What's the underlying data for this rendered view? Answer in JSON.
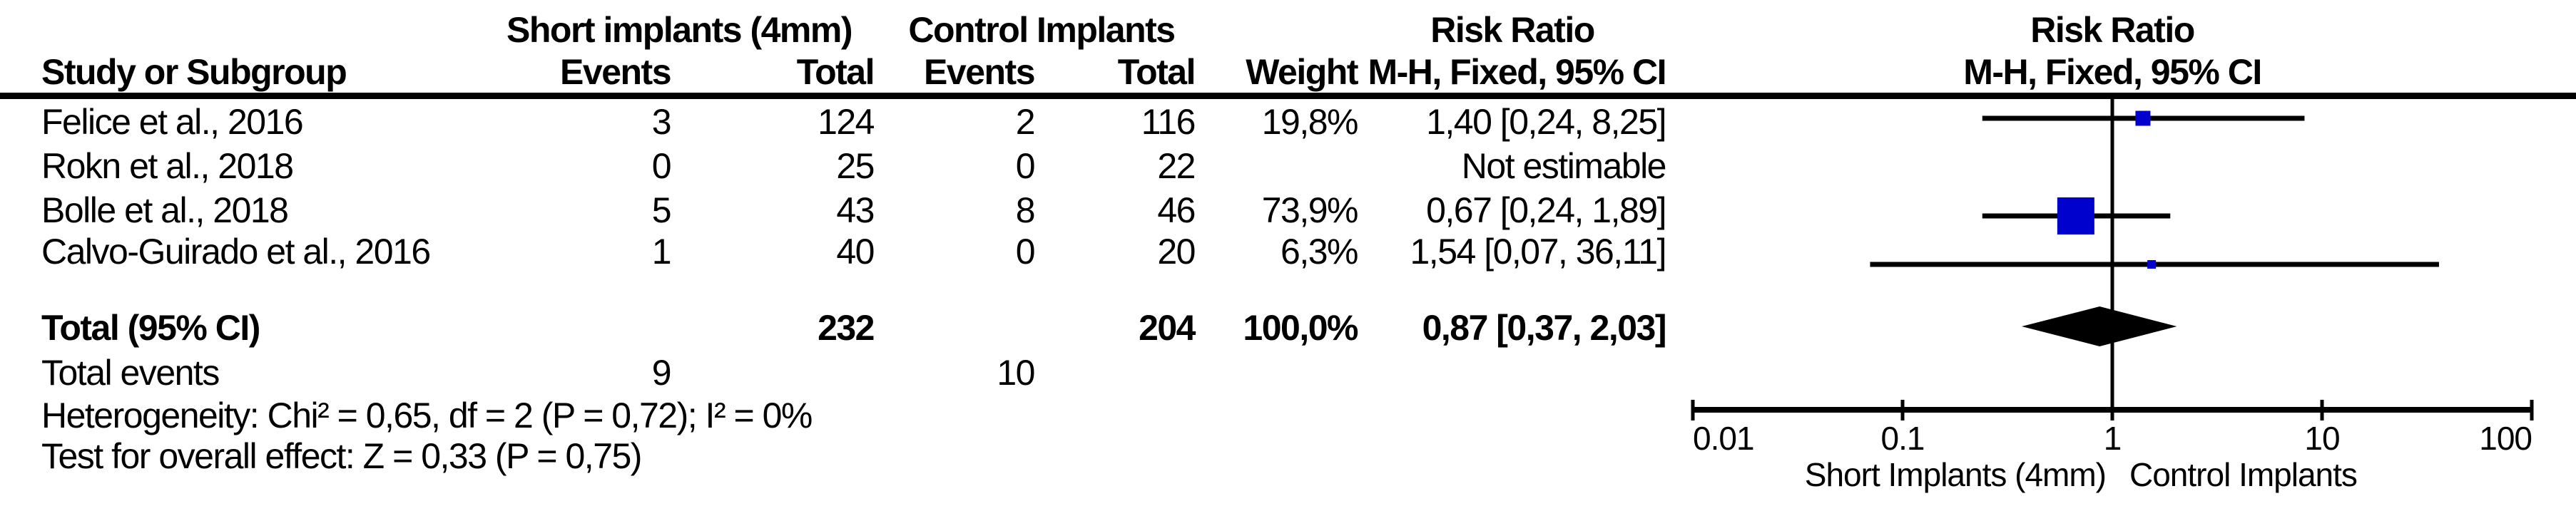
{
  "table": {
    "group_headers": {
      "short": "Short implants (4mm)",
      "control": "Control Implants",
      "risk_ratio": "Risk Ratio"
    },
    "col_headers": {
      "study": "Study or Subgroup",
      "events_short": "Events",
      "total_short": "Total",
      "events_control": "Events",
      "total_control": "Total",
      "weight": "Weight",
      "mh_ci": "M-H, Fixed, 95% CI"
    },
    "rows": [
      {
        "study": "Felice et al., 2016",
        "events_short": "3",
        "total_short": "124",
        "events_control": "2",
        "total_control": "116",
        "weight": "19,8%",
        "rr_ci": "1,40 [0,24, 8,25]"
      },
      {
        "study": "Rokn et al., 2018",
        "events_short": "0",
        "total_short": "25",
        "events_control": "0",
        "total_control": "22",
        "weight": "",
        "rr_ci": "Not estimable"
      },
      {
        "study": "Bolle et al., 2018",
        "events_short": "5",
        "total_short": "43",
        "events_control": "8",
        "total_control": "46",
        "weight": "73,9%",
        "rr_ci": "0,67 [0,24, 1,89]"
      },
      {
        "study": "Calvo-Guirado et al., 2016",
        "events_short": "1",
        "total_short": "40",
        "events_control": "0",
        "total_control": "20",
        "weight": "6,3%",
        "rr_ci": "1,54 [0,07, 36,11]"
      }
    ],
    "total_row": {
      "label": "Total (95% CI)",
      "total_short": "232",
      "total_control": "204",
      "weight": "100,0%",
      "rr_ci": "0,87 [0,37, 2,03]"
    },
    "total_events": {
      "label": "Total events",
      "short": "9",
      "control": "10"
    },
    "heterogeneity": "Heterogeneity: Chi² = 0,65, df = 2 (P = 0,72); I² = 0%",
    "overall_effect": "Test for overall effect: Z = 0,33 (P = 0,75)"
  },
  "plot": {
    "header_line1": "Risk Ratio",
    "header_line2": "M-H, Fixed, 95% CI",
    "axis_caption_left": "Short Implants (4mm)",
    "axis_caption_right": "Control Implants"
  },
  "chart_data": {
    "type": "scatter",
    "subtype": "forest-plot",
    "effect_measure": "Risk Ratio, M-H, Fixed, 95% CI",
    "x_scale": "log10",
    "xlim": [
      0.01,
      100
    ],
    "x_ticks": [
      0.01,
      0.1,
      1,
      10,
      100
    ],
    "x_tick_labels": [
      "0.01",
      "0.1",
      "1",
      "10",
      "100"
    ],
    "null_line": 1,
    "studies": [
      {
        "name": "Felice et al., 2016",
        "rr": 1.4,
        "ci_low": 0.24,
        "ci_high": 8.25,
        "weight_pct": 19.8,
        "marker_px": 21
      },
      {
        "name": "Rokn et al., 2018",
        "rr": null,
        "ci_low": null,
        "ci_high": null,
        "weight_pct": null,
        "marker_px": 0
      },
      {
        "name": "Bolle et al., 2018",
        "rr": 0.67,
        "ci_low": 0.24,
        "ci_high": 1.89,
        "weight_pct": 73.9,
        "marker_px": 52
      },
      {
        "name": "Calvo-Guirado et al., 2016",
        "rr": 1.54,
        "ci_low": 0.07,
        "ci_high": 36.11,
        "weight_pct": 6.3,
        "marker_px": 12
      }
    ],
    "total": {
      "rr": 0.87,
      "ci_low": 0.37,
      "ci_high": 2.03,
      "weight_pct": 100.0
    }
  },
  "colors": {
    "marker_blue": "#0101CD",
    "line_black": "#000000",
    "background": "#FFFFFF"
  }
}
